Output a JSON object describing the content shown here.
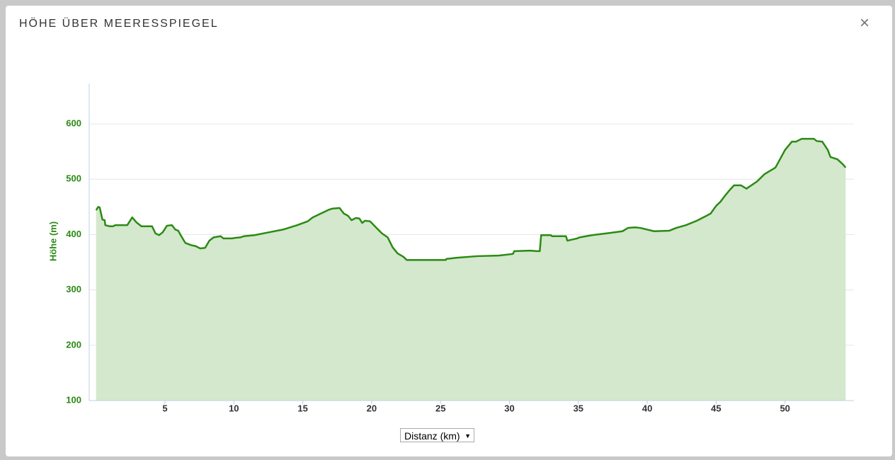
{
  "dialog": {
    "title": "HÖHE ÜBER MEERESSPIEGEL",
    "close_label": "×",
    "x_selector": "Distanz (km)"
  },
  "chart_data": {
    "type": "area",
    "y_label": "Höhe (m)",
    "color": "#2b8a14",
    "fill": "#d3e8cc",
    "grid": true,
    "xlim": [
      -0.5,
      55
    ],
    "ylim": [
      100,
      673
    ],
    "xticks": [
      5,
      10,
      15,
      20,
      25,
      30,
      35,
      40,
      45,
      50
    ],
    "yticks": [
      100,
      200,
      300,
      400,
      500,
      600
    ],
    "x": [
      0,
      0.15,
      0.26,
      0.46,
      0.62,
      0.67,
      0.98,
      1.23,
      1.39,
      2.26,
      2.62,
      2.93,
      3.29,
      4.06,
      4.31,
      4.57,
      4.83,
      5.14,
      5.5,
      5.75,
      5.96,
      6.16,
      6.47,
      6.88,
      7.24,
      7.55,
      7.91,
      8.22,
      8.53,
      9.04,
      9.24,
      9.86,
      10.07,
      10.48,
      10.73,
      11.5,
      12.53,
      13.56,
      14.59,
      15.36,
      15.72,
      16.39,
      16.9,
      17.16,
      17.67,
      17.98,
      18.28,
      18.54,
      18.85,
      19.11,
      19.31,
      19.52,
      19.88,
      20.39,
      20.75,
      21.16,
      21.52,
      21.88,
      22.29,
      22.55,
      23.93,
      25.37,
      25.42,
      26.14,
      27.68,
      29.22,
      30.25,
      30.35,
      31.5,
      32.0,
      32.2,
      32.3,
      33.0,
      33.1,
      34.1,
      34.2,
      34.9,
      35.1,
      36.0,
      37.3,
      38.2,
      38.6,
      39.1,
      39.5,
      40.5,
      41.6,
      42.1,
      42.8,
      43.6,
      44.3,
      44.6,
      45.0,
      45.3,
      45.7,
      46.0,
      46.3,
      46.8,
      47.2,
      47.97,
      48.5,
      49.3,
      49.5,
      50.0,
      50.5,
      50.8,
      51.2,
      52.1,
      52.3,
      52.7,
      53.1,
      53.3,
      53.8,
      54.2,
      54.4
    ],
    "values": [
      444,
      450,
      449,
      427,
      426,
      417,
      415,
      415,
      417,
      417,
      431,
      422,
      415,
      415,
      402,
      399,
      404,
      416,
      417,
      409,
      407,
      398,
      385,
      381,
      379,
      375,
      376,
      389,
      395,
      397,
      393,
      393,
      394,
      395,
      397,
      399,
      404,
      409,
      417,
      424,
      431,
      439,
      445,
      447,
      448,
      438,
      434,
      426,
      430,
      429,
      421,
      425,
      424,
      411,
      402,
      395,
      377,
      366,
      360,
      354,
      354,
      354,
      356,
      358,
      361,
      362,
      365,
      370,
      371,
      370,
      370,
      399,
      399,
      397,
      397,
      389,
      393,
      395,
      399,
      403,
      406,
      412,
      413,
      412,
      406,
      407,
      412,
      417,
      425,
      434,
      438,
      452,
      459,
      472,
      481,
      489,
      489,
      483,
      496,
      509,
      521,
      530,
      553,
      568,
      568,
      573,
      573,
      569,
      568,
      553,
      540,
      536,
      527,
      521
    ]
  }
}
